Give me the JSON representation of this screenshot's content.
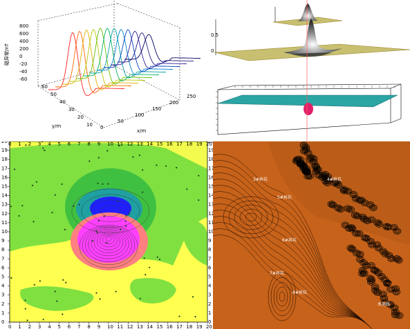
{
  "chart_data": [
    {
      "type": "line",
      "panel": "3D waterfall of magnetic anomaly profiles",
      "zlabel": "磁异常/nT",
      "xlabel": "x/m",
      "ylabel": "y/m",
      "z_ticks": [
        "800",
        "600",
        "400",
        "200",
        "0",
        "-20",
        "-40",
        "-60"
      ],
      "x_ticks": [
        "0",
        "50",
        "100",
        "150",
        "200",
        "250"
      ],
      "y_ticks": [
        "10",
        "20",
        "30",
        "40",
        "50",
        "60"
      ],
      "profiles": 12,
      "peak_values": [
        780,
        760,
        740,
        710,
        690,
        650,
        610,
        560,
        520,
        460,
        400,
        340
      ],
      "colors": [
        "#ff2020",
        "#ff6a00",
        "#e0b000",
        "#b8c800",
        "#60c000",
        "#00b060",
        "#00a0a0",
        "#0080d0",
        "#0040c0",
        "#3020a0",
        "#202080",
        "#000060"
      ]
    },
    {
      "type": "area",
      "panel": "3D surface of anomaly with top view",
      "z_ticks": [
        "0.5",
        "0"
      ],
      "surface_color": "#c8c070"
    },
    {
      "type": "area",
      "panel": "3D model: horizontal plane with buried body",
      "plane_color": "#20a0a0",
      "body_color": "#e0206a"
    },
    {
      "type": "heatmap",
      "panel": "Filled contour map of magnetic anomaly",
      "x_ticks": [
        "0",
        "1",
        "2",
        "3",
        "4",
        "5",
        "6",
        "7",
        "8",
        "9",
        "10",
        "11",
        "12",
        "13",
        "14",
        "15",
        "16",
        "17",
        "18",
        "19",
        "20"
      ],
      "y_ticks": [
        "0",
        "1",
        "2",
        "3",
        "4",
        "5",
        "6",
        "7",
        "8",
        "9",
        "10",
        "11",
        "12",
        "13",
        "14",
        "15",
        "16",
        "17",
        "18",
        "19",
        "20"
      ],
      "xlim": [
        0,
        20
      ],
      "ylim": [
        0,
        20
      ],
      "negative_center": [
        10.2,
        12.3
      ],
      "positive_center": [
        10.0,
        9.3
      ],
      "colors": {
        "background": "#80e040",
        "yellow": "#ffff50",
        "magenta": "#ff40ff",
        "blue": "#2020ff",
        "teal": "#20a0a0",
        "green": "#40c040",
        "salmon": "#ff8080"
      }
    },
    {
      "type": "heatmap",
      "panel": "Contour map with labeled mine shafts",
      "labels": [
        "3#井坑",
        "4#井坑",
        "5#井坑",
        "6#井坑",
        "7#井坑",
        "8#井坑",
        "水泥线"
      ],
      "background": "#c7621a"
    }
  ]
}
